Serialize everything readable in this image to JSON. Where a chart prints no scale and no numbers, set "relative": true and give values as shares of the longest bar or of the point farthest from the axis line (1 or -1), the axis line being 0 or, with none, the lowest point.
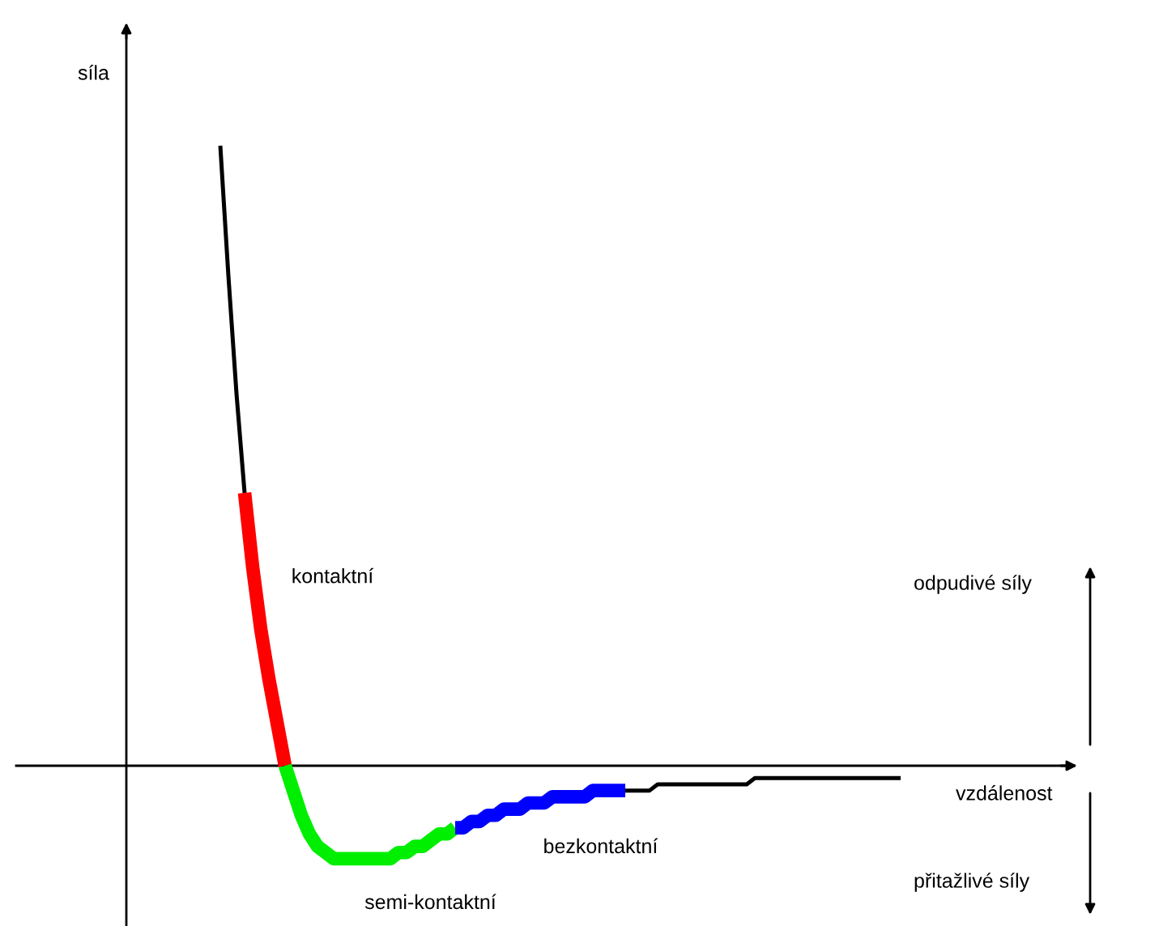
{
  "chart_data": {
    "type": "line",
    "relative": true,
    "xlabel": "vzdálenost",
    "categories": [
      null,
      null,
      null,
      null,
      null,
      null,
      null,
      null,
      null,
      null,
      null,
      null,
      null,
      null,
      null,
      null,
      null,
      null,
      null,
      null,
      null,
      null,
      null,
      null,
      null,
      null,
      null,
      null,
      null,
      null,
      null,
      null,
      null,
      null,
      null,
      null,
      null,
      null,
      null,
      null,
      null,
      null,
      null,
      null,
      null,
      null,
      null,
      null,
      null,
      null,
      null,
      null,
      null,
      null,
      null,
      null,
      null,
      null,
      null,
      null,
      null,
      null,
      null,
      null,
      null,
      null,
      null,
      null,
      null,
      null,
      null,
      null,
      null,
      null,
      null,
      null,
      null,
      null,
      null,
      null,
      null,
      null,
      null,
      null,
      null
    ],
    "series": [
      {
        "color": "#000000",
        "values": [
          1.0,
          0.79,
          0.6,
          0.44,
          null,
          null,
          null,
          null,
          null,
          null,
          null,
          null,
          null,
          null,
          null,
          null,
          null,
          null,
          null,
          null,
          null,
          null,
          null,
          null,
          null,
          null,
          null,
          null,
          null,
          null,
          null,
          null,
          null,
          null,
          null,
          null,
          null,
          null,
          null,
          null,
          null,
          null,
          null,
          null,
          null,
          null,
          null,
          null,
          null,
          null,
          null,
          null,
          null,
          null,
          null,
          null,
          null,
          null,
          null,
          null,
          null,
          null,
          null,
          null,
          null,
          null,
          null,
          null,
          null,
          null,
          null,
          null,
          null,
          null,
          null,
          null,
          null,
          null,
          null,
          null,
          null,
          null,
          null,
          null,
          null
        ]
      },
      {
        "name": "kontaktní",
        "color": "#ff0000",
        "values": [
          null,
          null,
          null,
          0.44,
          0.32,
          0.22,
          0.14,
          0.07,
          0,
          null,
          null,
          null,
          null,
          null,
          null,
          null,
          null,
          null,
          null,
          null,
          null,
          null,
          null,
          null,
          null,
          null,
          null,
          null,
          null,
          null,
          null,
          null,
          null,
          null,
          null,
          null,
          null,
          null,
          null,
          null,
          null,
          null,
          null,
          null,
          null,
          null,
          null,
          null,
          null,
          null,
          null,
          null,
          null,
          null,
          null,
          null,
          null,
          null,
          null,
          null,
          null,
          null,
          null,
          null,
          null,
          null,
          null,
          null,
          null,
          null,
          null,
          null,
          null,
          null,
          null,
          null,
          null,
          null,
          null,
          null,
          null,
          null,
          null,
          null,
          null
        ]
      },
      {
        "name": "semi-kontaktní",
        "color": "#00ee00",
        "values": [
          null,
          null,
          null,
          null,
          null,
          null,
          null,
          null,
          0,
          -0.04,
          -0.08,
          -0.11,
          -0.13,
          -0.14,
          -0.15,
          -0.15,
          -0.15,
          -0.15,
          -0.15,
          -0.15,
          -0.15,
          -0.15,
          -0.14,
          -0.14,
          -0.13,
          -0.13,
          -0.12,
          -0.11,
          -0.11,
          -0.1,
          null,
          null,
          null,
          null,
          null,
          null,
          null,
          null,
          null,
          null,
          null,
          null,
          null,
          null,
          null,
          null,
          null,
          null,
          null,
          null,
          null,
          null,
          null,
          null,
          null,
          null,
          null,
          null,
          null,
          null,
          null,
          null,
          null,
          null,
          null,
          null,
          null,
          null,
          null,
          null,
          null,
          null,
          null,
          null,
          null,
          null,
          null,
          null,
          null,
          null,
          null,
          null,
          null,
          null,
          null
        ]
      },
      {
        "name": "bezkontaktní",
        "color": "#0000ff",
        "values": [
          null,
          null,
          null,
          null,
          null,
          null,
          null,
          null,
          null,
          null,
          null,
          null,
          null,
          null,
          null,
          null,
          null,
          null,
          null,
          null,
          null,
          null,
          null,
          null,
          null,
          null,
          null,
          null,
          null,
          -0.1,
          -0.1,
          -0.09,
          -0.09,
          -0.08,
          -0.08,
          -0.07,
          -0.07,
          -0.07,
          -0.06,
          -0.06,
          -0.06,
          -0.05,
          -0.05,
          -0.05,
          -0.05,
          -0.05,
          -0.04,
          -0.04,
          -0.04,
          -0.04,
          -0.04,
          null,
          null,
          null,
          null,
          null,
          null,
          null,
          null,
          null,
          null,
          null,
          null,
          null,
          null,
          null,
          null,
          null,
          null,
          null,
          null,
          null,
          null,
          null,
          null,
          null,
          null,
          null,
          null,
          null,
          null,
          null,
          null,
          null,
          null
        ]
      },
      {
        "color": "#000000",
        "values": [
          null,
          null,
          null,
          null,
          null,
          null,
          null,
          null,
          null,
          null,
          null,
          null,
          null,
          null,
          null,
          null,
          null,
          null,
          null,
          null,
          null,
          null,
          null,
          null,
          null,
          null,
          null,
          null,
          null,
          null,
          null,
          null,
          null,
          null,
          null,
          null,
          null,
          null,
          null,
          null,
          null,
          null,
          null,
          null,
          null,
          null,
          null,
          null,
          null,
          null,
          -0.04,
          -0.04,
          -0.04,
          -0.04,
          -0.03,
          -0.03,
          -0.03,
          -0.03,
          -0.03,
          -0.03,
          -0.03,
          -0.03,
          -0.03,
          -0.03,
          -0.03,
          -0.03,
          -0.02,
          -0.02,
          -0.02,
          -0.02,
          -0.02,
          -0.02,
          -0.02,
          -0.02,
          -0.02,
          -0.02,
          -0.02,
          -0.02,
          -0.02,
          -0.02,
          -0.02,
          -0.02,
          -0.02,
          -0.02,
          -0.02
        ]
      }
    ],
    "annotations": [
      "síla",
      "odpudivé síly",
      "přitažlivé síly"
    ]
  }
}
